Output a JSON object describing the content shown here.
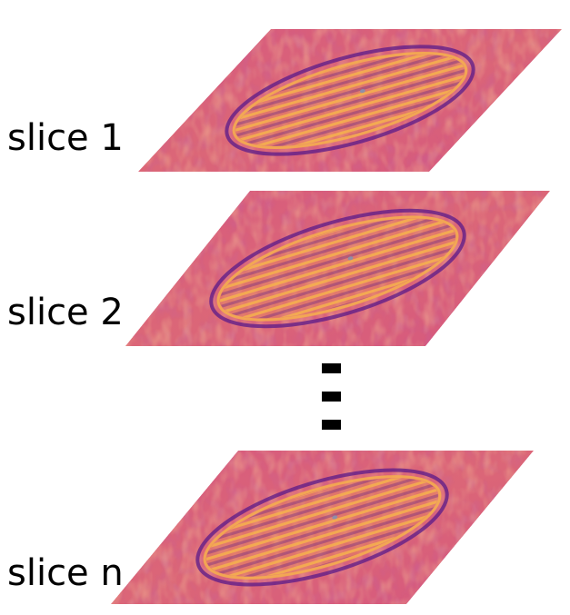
{
  "slices": [
    {
      "id": "slice-1",
      "label": "slice 1"
    },
    {
      "id": "slice-2",
      "label": "slice 2"
    },
    {
      "id": "slice-n",
      "label": "slice n"
    }
  ],
  "ellipsis": {
    "symbol": "vertical-dashes",
    "count": 3
  },
  "colors": {
    "background": "#d8527f",
    "stripe_light": "#f6b24e",
    "stripe_mid": "#e88a5a",
    "edge_dark": "#5a1a8a",
    "label_text": "#000000"
  }
}
